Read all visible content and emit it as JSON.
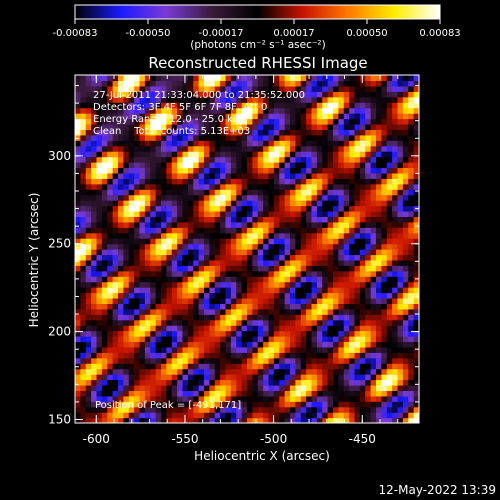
{
  "chart_data": {
    "type": "heatmap",
    "title": "Reconstructed RHESSI Image",
    "xlabel": "Heliocentric X (arcsec)",
    "ylabel": "Heliocentric Y (arcsec)",
    "xlim": [
      -612,
      -418
    ],
    "ylim": [
      148,
      346
    ],
    "x_ticks": [
      -600,
      -550,
      -500,
      -450
    ],
    "y_ticks": [
      150,
      200,
      250,
      300
    ],
    "colorbar": {
      "unit_label": "(photons cm⁻² s⁻¹ asec⁻²)",
      "ticks": [
        "-0.00083",
        "-0.00050",
        "-0.00017",
        "0.00017",
        "0.00050",
        "0.00083"
      ],
      "range": [
        -0.00083,
        0.00083
      ]
    },
    "annotations": {
      "time_range": "27-Jul-2011 21:33:04.000 to 21:35:52.000",
      "detectors": "Detectors: 3F 4F 5F 6F 7F 8F, Att 0",
      "energy": "Energy Range: 12.0 - 25.0 keV",
      "method": "Clean    Total counts: 5.13E+03",
      "peak": "Position of Peak = [-491,171]"
    },
    "peak": {
      "x": -491,
      "y": 171
    },
    "pattern": {
      "stripe_direction_deg": 50,
      "stripe_period_arcsec": 28,
      "modulation_period_arcsec": 40,
      "cells": 64
    },
    "colormap": [
      "#000000",
      "#1a1aff",
      "#7a3ad6",
      "#3a1a3a",
      "#000000",
      "#c81400",
      "#ff7a00",
      "#ffee00",
      "#ffffff"
    ]
  },
  "footer": {
    "timestamp": "12-May-2022 13:39"
  }
}
